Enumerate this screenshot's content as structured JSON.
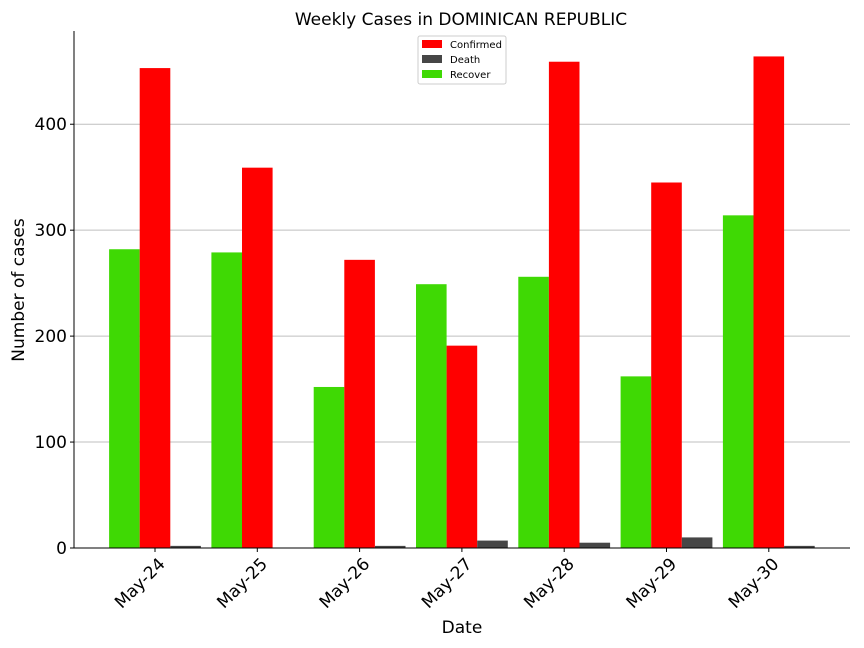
{
  "chart_data": {
    "type": "bar",
    "title": "Weekly Cases in DOMINICAN REPUBLIC",
    "xlabel": "Date",
    "ylabel": "Number of cases",
    "categories": [
      "May-24",
      "May-25",
      "May-26",
      "May-27",
      "May-28",
      "May-29",
      "May-30"
    ],
    "series": [
      {
        "name": "Recover",
        "color": "#3fd904",
        "values": [
          282,
          279,
          152,
          249,
          256,
          162,
          314
        ]
      },
      {
        "name": "Confirmed",
        "color": "#ff0000",
        "values": [
          453,
          359,
          272,
          191,
          459,
          345,
          464
        ]
      },
      {
        "name": "Death",
        "color": "#464646",
        "values": [
          2,
          0,
          2,
          7,
          5,
          10,
          2
        ]
      }
    ],
    "legend_order": [
      "Confirmed",
      "Death",
      "Recover"
    ],
    "legend_position": "top-center",
    "ylim": [
      0,
      488
    ],
    "yticks": [
      0,
      100,
      200,
      300,
      400
    ],
    "grid": "y",
    "gridColor": "#bfbfbf",
    "axisColor": "#000000"
  }
}
